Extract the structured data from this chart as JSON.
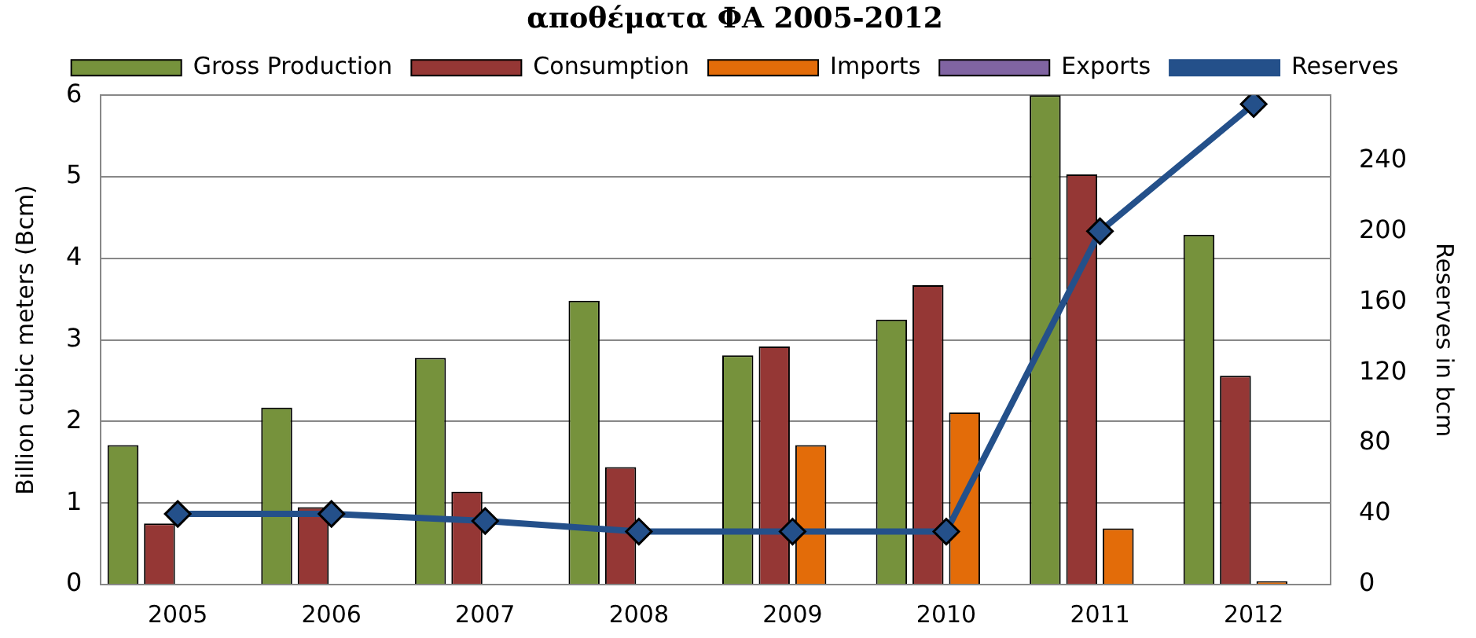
{
  "chart_data": {
    "type": "bar",
    "title": "αποθέματα ΦΑ 2005-2012",
    "ylabel": "Billion cubic meters (Bcm)",
    "y2label": "Reserves in bcm",
    "categories": [
      "2005",
      "2006",
      "2007",
      "2008",
      "2009",
      "2010",
      "2011",
      "2012"
    ],
    "series": [
      {
        "name": "Gross Production",
        "color": "#76923c",
        "values": [
          1.71,
          2.17,
          2.78,
          3.48,
          2.81,
          3.25,
          6.0,
          4.29
        ]
      },
      {
        "name": "Consumption",
        "color": "#953735",
        "values": [
          0.75,
          0.95,
          1.14,
          1.44,
          2.92,
          3.67,
          5.03,
          2.56
        ]
      },
      {
        "name": "Imports",
        "color": "#e36c09",
        "values": [
          0,
          0,
          0,
          0,
          1.71,
          2.11,
          0.69,
          0.04
        ]
      },
      {
        "name": "Exports",
        "color": "#8064a2",
        "values": [
          0,
          0,
          0,
          0,
          0,
          0,
          0,
          0
        ]
      },
      {
        "name": "Reserves",
        "type": "line",
        "axis": "y2",
        "color": "#24508a",
        "marker": "diamond",
        "values": [
          40,
          40,
          36,
          30,
          30,
          30,
          200,
          272
        ]
      }
    ],
    "ylim": [
      0,
      6
    ],
    "yticks": [
      0,
      1,
      2,
      3,
      4,
      5,
      6
    ],
    "y2lim": [
      0,
      277
    ],
    "y2ticks": [
      0,
      40,
      80,
      120,
      160,
      200,
      240
    ],
    "grid": "y",
    "legend": "top"
  }
}
